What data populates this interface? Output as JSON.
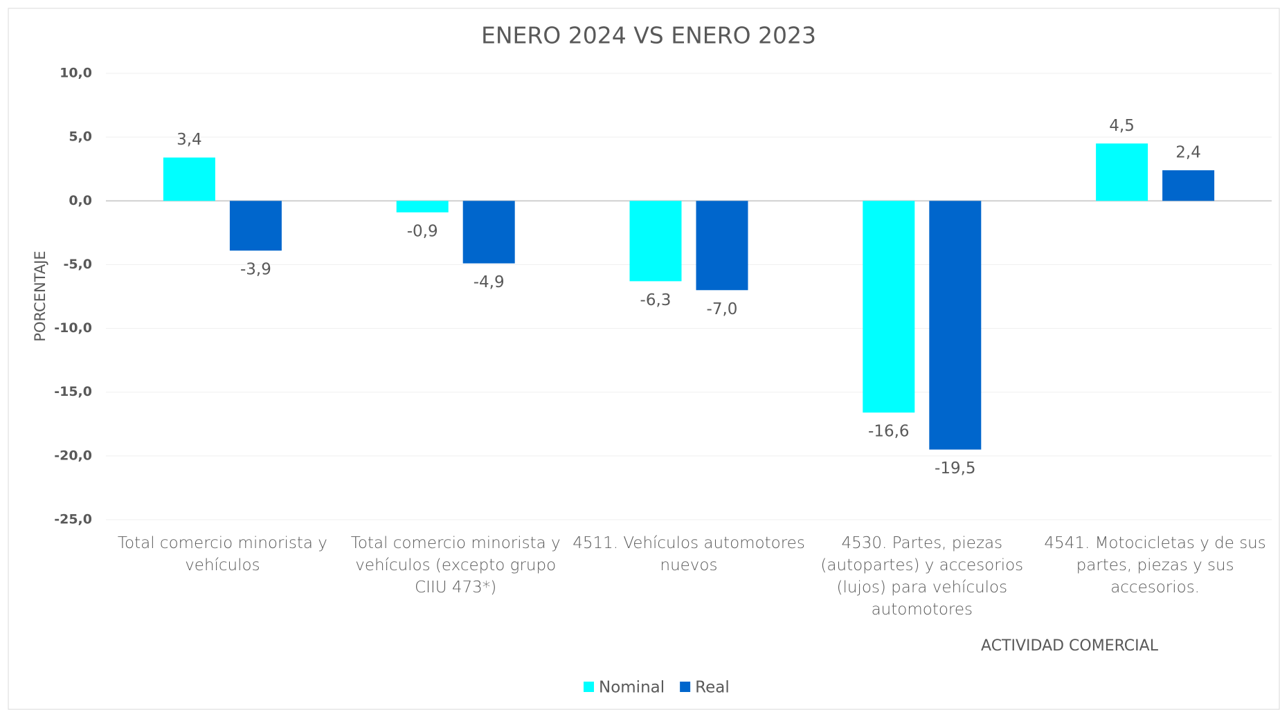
{
  "chart_data": {
    "type": "bar",
    "title": "ENERO 2024 VS ENERO 2023",
    "y_label": "PORCENTAJE",
    "x_label": "ACTIVIDAD COMERCIAL",
    "categories": [
      "Total comercio minorista y vehículos",
      "Total comercio minorista y vehículos (excepto grupo CIIU 473*)",
      "4511. Vehículos automotores nuevos",
      "4530. Partes, piezas (autopartes) y accesorios (lujos) para vehículos automotores",
      "4541.  Motocicletas y de sus partes, piezas y sus accesorios."
    ],
    "series": [
      {
        "name": "Nominal",
        "color": "#00FFFF",
        "values": [
          3.4,
          -0.9,
          -6.3,
          -16.6,
          4.5
        ],
        "value_labels": [
          "3,4",
          "-0,9",
          "-6,3",
          "-16,6",
          "4,5"
        ]
      },
      {
        "name": "Real",
        "color": "#0066CC",
        "values": [
          -3.9,
          -4.9,
          -7.0,
          -19.5,
          2.4
        ],
        "value_labels": [
          "-3,9",
          "-4,9",
          "-7,0",
          "-19,5",
          "2,4"
        ]
      }
    ],
    "ylim": [
      -25,
      10
    ],
    "yticks": [
      {
        "value": -25,
        "label": "-25,0"
      },
      {
        "value": -20,
        "label": "-20,0"
      },
      {
        "value": -15,
        "label": "-15,0"
      },
      {
        "value": -10,
        "label": "-10,0"
      },
      {
        "value": -5,
        "label": "-5,0"
      },
      {
        "value": 0,
        "label": "0,0"
      },
      {
        "value": 5,
        "label": "5,0"
      },
      {
        "value": 10,
        "label": "10,0"
      }
    ],
    "grid": true,
    "legend": "bottom"
  }
}
